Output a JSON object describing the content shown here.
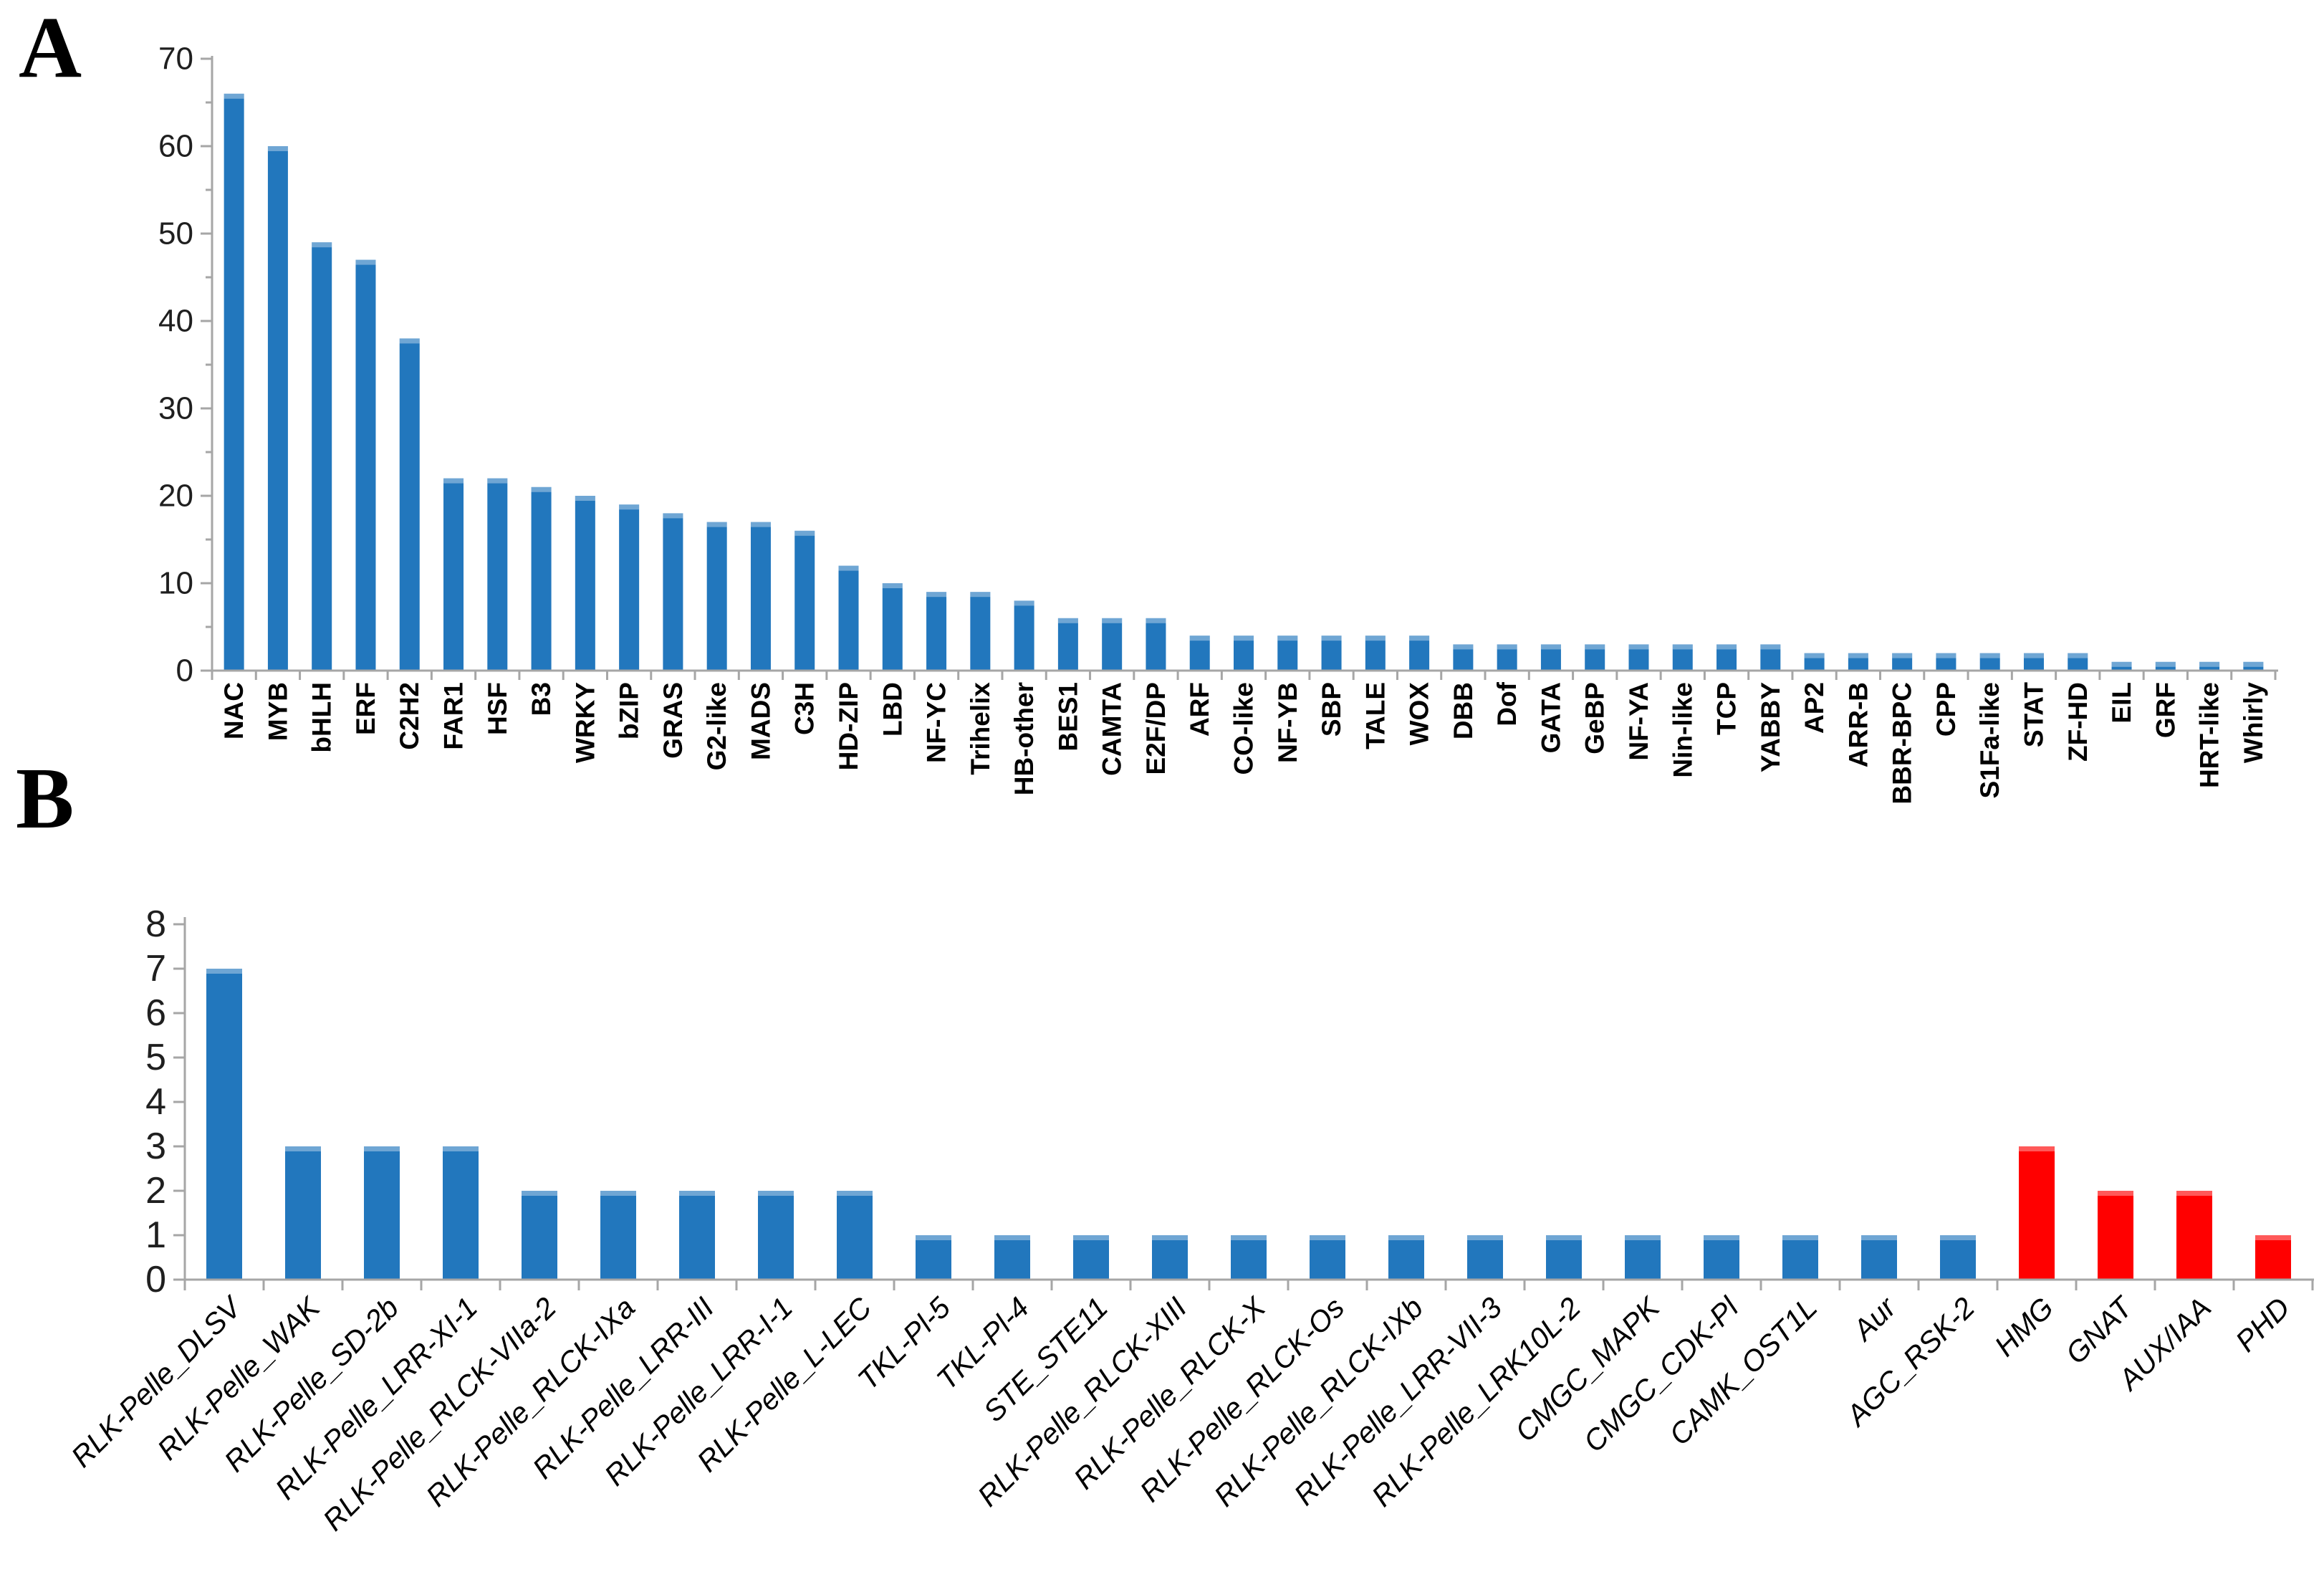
{
  "background": "#FFFFFF",
  "panel_letters": {
    "a": "A",
    "b": "B"
  },
  "colors": {
    "bar_blue": "#2277BD",
    "bar_red": "#FF0000",
    "axis_gray": "#A6A6A6",
    "text_black": "#000000"
  },
  "chart_data": [
    {
      "type": "bar",
      "panel": "A",
      "title": "",
      "xlabel": "",
      "ylabel": "",
      "ylim": [
        0,
        70
      ],
      "yticks": [
        0,
        10,
        20,
        30,
        40,
        50,
        60,
        70
      ],
      "minor_ytick_step": 5,
      "grid": false,
      "legend": null,
      "bar_color": "#2277BD",
      "categories": [
        "NAC",
        "MYB",
        "bHLH",
        "ERF",
        "C2H2",
        "FAR1",
        "HSF",
        "B3",
        "WRKY",
        "bZIP",
        "GRAS",
        "G2-like",
        "MADS",
        "C3H",
        "HD-ZIP",
        "LBD",
        "NF-YC",
        "Trihelix",
        "HB-other",
        "BES1",
        "CAMTA",
        "E2F/DP",
        "ARF",
        "CO-like",
        "NF-YB",
        "SBP",
        "TALE",
        "WOX",
        "DBB",
        "Dof",
        "GATA",
        "GeBP",
        "NF-YA",
        "Nin-like",
        "TCP",
        "YABBY",
        "AP2",
        "ARR-B",
        "BBR-BPC",
        "CPP",
        "S1Fa-like",
        "STAT",
        "ZF-HD",
        "EIL",
        "GRF",
        "HRT-like",
        "Whirly"
      ],
      "values": [
        66,
        60,
        49,
        47,
        38,
        22,
        22,
        21,
        20,
        19,
        18,
        17,
        17,
        16,
        12,
        10,
        9,
        9,
        8,
        6,
        6,
        6,
        4,
        4,
        4,
        4,
        4,
        4,
        3,
        3,
        3,
        3,
        3,
        3,
        3,
        3,
        2,
        2,
        2,
        2,
        2,
        2,
        2,
        1,
        1,
        1,
        1
      ]
    },
    {
      "type": "bar",
      "panel": "B",
      "title": "",
      "xlabel": "",
      "ylabel": "",
      "ylim": [
        0,
        8
      ],
      "yticks": [
        0,
        1,
        2,
        3,
        4,
        5,
        6,
        7,
        8
      ],
      "minor_ytick_step": null,
      "grid": false,
      "legend": null,
      "bar_color": "#2277BD",
      "highlight_color": "#FF0000",
      "categories": [
        "RLK-Pelle_DLSV",
        "RLK-Pelle_WAK",
        "RLK-Pelle_SD-2b",
        "RLK-Pelle_LRR-XI-1",
        "RLK-Pelle_RLCK-VIIa-2",
        "RLK-Pelle_RLCK-IXa",
        "RLK-Pelle_LRR-III",
        "RLK-Pelle_LRR-I-1",
        "RLK-Pelle_L-LEC",
        "TKL-Pl-5",
        "TKL-Pl-4",
        "STE_STE11",
        "RLK-Pelle_RLCK-XIII",
        "RLK-Pelle_RLCK-X",
        "RLK-Pelle_RLCK-Os",
        "RLK-Pelle_RLCK-IXb",
        "RLK-Pelle_LRR-VII-3",
        "RLK-Pelle_LRK10L-2",
        "CMGC_MAPK",
        "CMGC_CDK-Pl",
        "CAMK_OST1L",
        "Aur",
        "AGC_RSK-2",
        "HMG",
        "GNAT",
        "AUX/IAA",
        "PHD"
      ],
      "values": [
        7,
        3,
        3,
        3,
        2,
        2,
        2,
        2,
        2,
        1,
        1,
        1,
        1,
        1,
        1,
        1,
        1,
        1,
        1,
        1,
        1,
        1,
        1,
        3,
        2,
        2,
        1
      ],
      "bar_colors": [
        "#2277BD",
        "#2277BD",
        "#2277BD",
        "#2277BD",
        "#2277BD",
        "#2277BD",
        "#2277BD",
        "#2277BD",
        "#2277BD",
        "#2277BD",
        "#2277BD",
        "#2277BD",
        "#2277BD",
        "#2277BD",
        "#2277BD",
        "#2277BD",
        "#2277BD",
        "#2277BD",
        "#2277BD",
        "#2277BD",
        "#2277BD",
        "#2277BD",
        "#2277BD",
        "#FF0000",
        "#FF0000",
        "#FF0000",
        "#FF0000"
      ]
    }
  ]
}
